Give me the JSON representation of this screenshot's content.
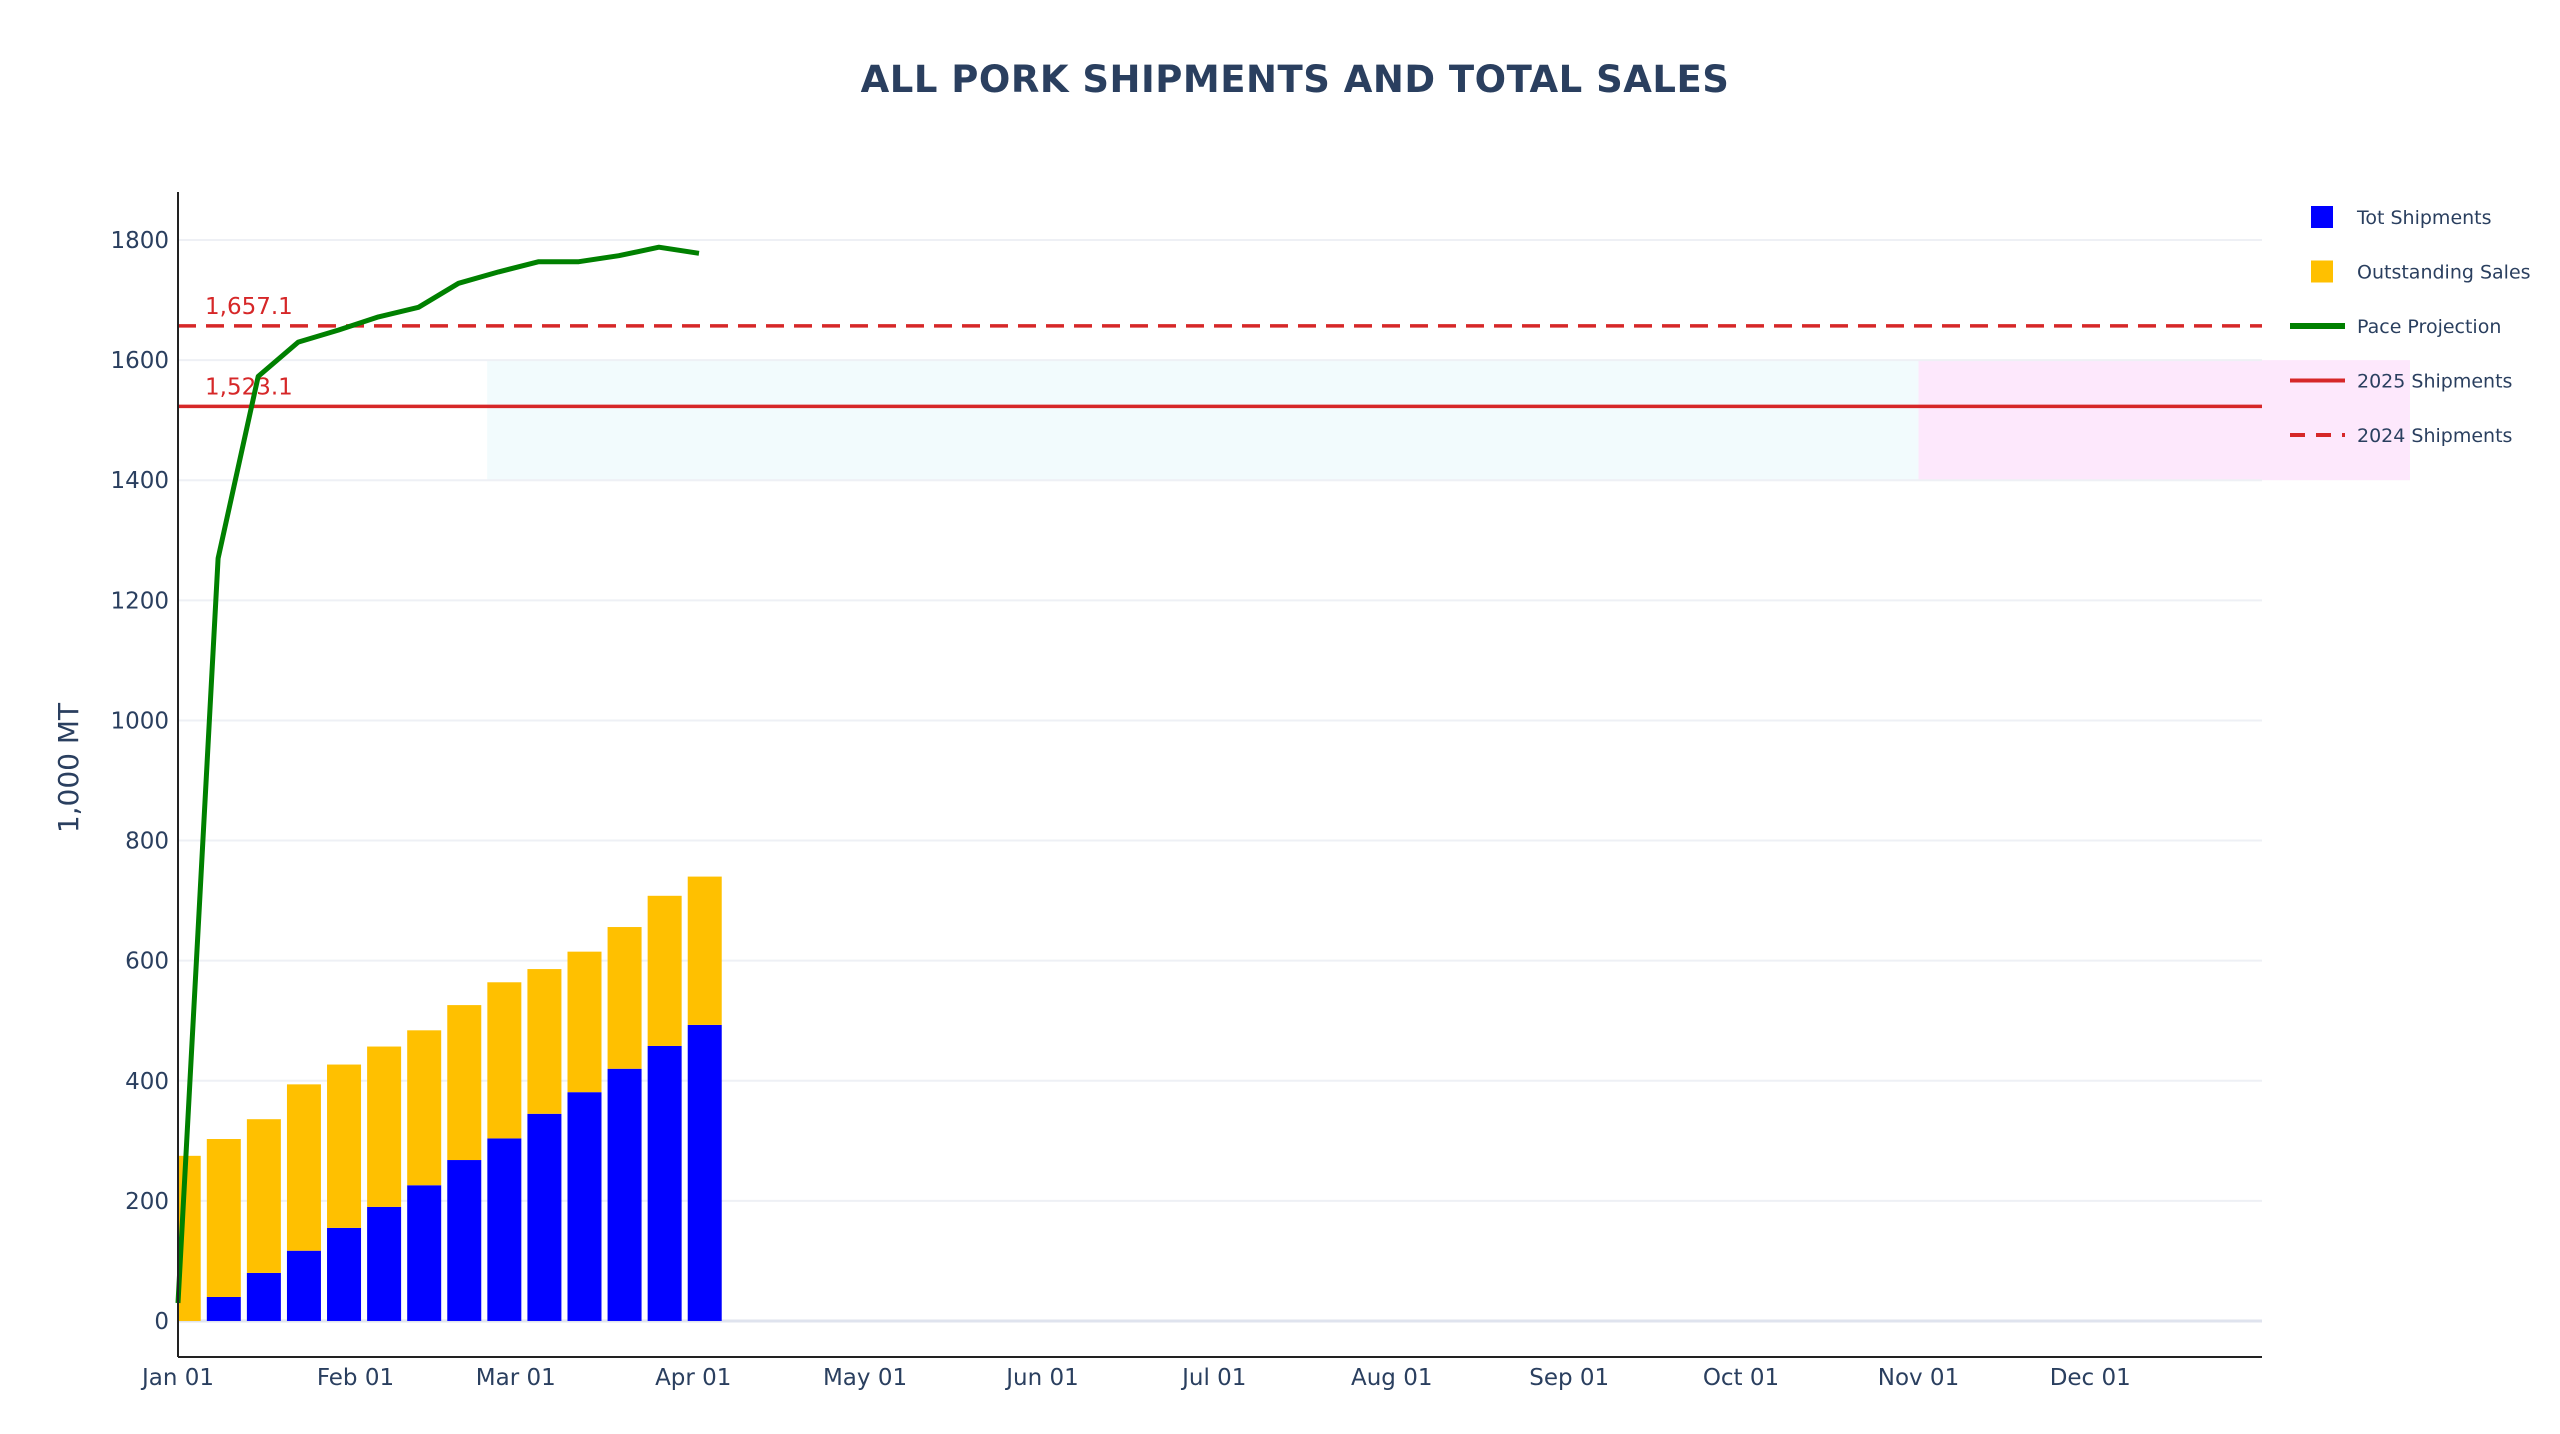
{
  "chart_data": {
    "type": "bar",
    "title": "ALL PORK SHIPMENTS AND TOTAL SALES",
    "ylabel": "1,000 MT",
    "ylim": [
      -60,
      1880
    ],
    "y_ticks": [
      0,
      200,
      400,
      600,
      800,
      1000,
      1200,
      1400,
      1600,
      1800
    ],
    "x_range": [
      "2025-01-01",
      "2025-12-31"
    ],
    "x_ticks": [
      "Jan 01",
      "Feb 01",
      "Mar 01",
      "Apr 01",
      "May 01",
      "Jun 01",
      "Jul 01",
      "Aug 01",
      "Sep 01",
      "Oct 01",
      "Nov 01",
      "Dec 01"
    ],
    "x_tick_dates": [
      "2025-01-01",
      "2025-02-01",
      "2025-03-01",
      "2025-04-01",
      "2025-05-01",
      "2025-06-01",
      "2025-07-01",
      "2025-08-01",
      "2025-09-01",
      "2025-10-01",
      "2025-11-01",
      "2025-12-01"
    ],
    "bar_mode": "stack",
    "weeks": [
      "2025-01-02",
      "2025-01-09",
      "2025-01-16",
      "2025-01-23",
      "2025-01-30",
      "2025-02-06",
      "2025-02-13",
      "2025-02-20",
      "2025-02-27",
      "2025-03-06",
      "2025-03-13",
      "2025-03-20",
      "2025-03-27",
      "2025-04-03"
    ],
    "series": [
      {
        "name": "Tot Shipments",
        "kind": "bar",
        "color": "#0000ff",
        "values": [
          0,
          40,
          80,
          117,
          155,
          190,
          226,
          268,
          304,
          345,
          381,
          420,
          458,
          493
        ]
      },
      {
        "name": "Outstanding Sales",
        "kind": "bar",
        "color": "#ffc000",
        "values": [
          275,
          263,
          256,
          277,
          272,
          267,
          258,
          258,
          260,
          241,
          234,
          236,
          250,
          247
        ]
      },
      {
        "name": "Pace Projection",
        "kind": "line",
        "color": "#008000",
        "x": [
          "2025-01-01",
          "2025-01-08",
          "2025-01-15",
          "2025-01-22",
          "2025-01-29",
          "2025-02-05",
          "2025-02-12",
          "2025-02-19",
          "2025-02-26",
          "2025-03-05",
          "2025-03-12",
          "2025-03-19",
          "2025-03-26",
          "2025-04-02"
        ],
        "values": [
          30,
          1270,
          1573,
          1630,
          1650,
          1672,
          1688,
          1728,
          1747,
          1764,
          1764,
          1774,
          1788,
          1778
        ]
      },
      {
        "name": "2025 Shipments",
        "kind": "hline",
        "color": "#d62728",
        "dash": "solid",
        "value": 1523.1,
        "label": "1,523.1"
      },
      {
        "name": "2024 Shipments",
        "kind": "hline",
        "color": "#d62728",
        "dash": "dash",
        "value": 1657.1,
        "label": "1,657.1"
      }
    ],
    "shaded_bands": [
      {
        "y": [
          1400,
          1600
        ],
        "x": [
          "2025-02-24",
          "2025-11-01"
        ],
        "color": "#f2fbfd"
      },
      {
        "y": [
          1400,
          1600
        ],
        "x": [
          "2025-11-01",
          "2025-12-31"
        ],
        "color": "#fde8fc"
      }
    ],
    "legend_position": "right",
    "grid": true
  }
}
